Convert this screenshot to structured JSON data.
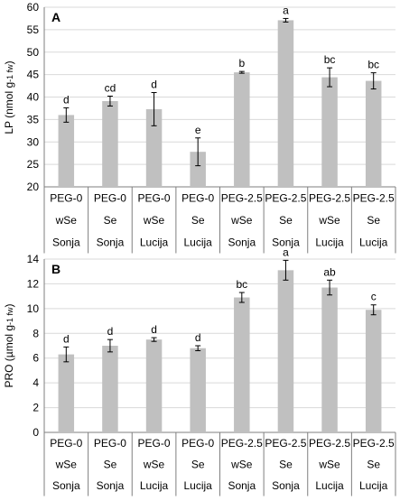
{
  "chart_data": [
    {
      "type": "bar",
      "panel_label": "A",
      "ylabel": "LP (nmol g-1 fw)",
      "ylabel_main": "LP (nmol g",
      "ylabel_sub": "-1 fw",
      "ylabel_end": ")",
      "ylim": [
        20,
        60
      ],
      "yticks": [
        "20",
        "25",
        "30",
        "35",
        "40",
        "45",
        "50",
        "55",
        "60"
      ],
      "grid": true,
      "categories": [
        [
          "PEG-0",
          "wSe",
          "Sonja"
        ],
        [
          "PEG-0",
          "Se",
          "Sonja"
        ],
        [
          "PEG-0",
          "wSe",
          "Lucija"
        ],
        [
          "PEG-0",
          "Se",
          "Lucija"
        ],
        [
          "PEG-2.5",
          "wSe",
          "Sonja"
        ],
        [
          "PEG-2.5",
          "Se",
          "Sonja"
        ],
        [
          "PEG-2.5",
          "wSe",
          "Lucija"
        ],
        [
          "PEG-2.5",
          "Se",
          "Lucija"
        ]
      ],
      "values": [
        36,
        39.1,
        37.3,
        27.8,
        45.5,
        57.1,
        44.4,
        43.6
      ],
      "errors": [
        1.6,
        1.1,
        3.7,
        3.1,
        0.2,
        0.4,
        2.1,
        1.8
      ],
      "letters": [
        "d",
        "cd",
        "d",
        "e",
        "b",
        "a",
        "bc",
        "bc"
      ],
      "bar_color": "#c0c0c0"
    },
    {
      "type": "bar",
      "panel_label": "B",
      "ylabel": "PRO (µmol g-1 fw)",
      "ylabel_main": "PRO (µmol g",
      "ylabel_sub": "-1 fw",
      "ylabel_end": ")",
      "ylim": [
        0,
        14
      ],
      "yticks": [
        "0",
        "2",
        "4",
        "6",
        "8",
        "10",
        "12",
        "14"
      ],
      "grid": true,
      "categories": [
        [
          "PEG-0",
          "wSe",
          "Sonja"
        ],
        [
          "PEG-0",
          "Se",
          "Sonja"
        ],
        [
          "PEG-0",
          "wSe",
          "Lucija"
        ],
        [
          "PEG-0",
          "Se",
          "Lucija"
        ],
        [
          "PEG-2.5",
          "wSe",
          "Sonja"
        ],
        [
          "PEG-2.5",
          "Se",
          "Sonja"
        ],
        [
          "PEG-2.5",
          "wSe",
          "Lucija"
        ],
        [
          "PEG-2.5",
          "Se",
          "Lucija"
        ]
      ],
      "values": [
        6.3,
        7,
        7.5,
        6.8,
        10.9,
        13.1,
        11.7,
        9.9
      ],
      "errors": [
        0.6,
        0.5,
        0.15,
        0.2,
        0.4,
        0.8,
        0.6,
        0.4
      ],
      "letters": [
        "d",
        "d",
        "d",
        "d",
        "bc",
        "a",
        "ab",
        "c"
      ],
      "bar_color": "#c0c0c0"
    }
  ]
}
